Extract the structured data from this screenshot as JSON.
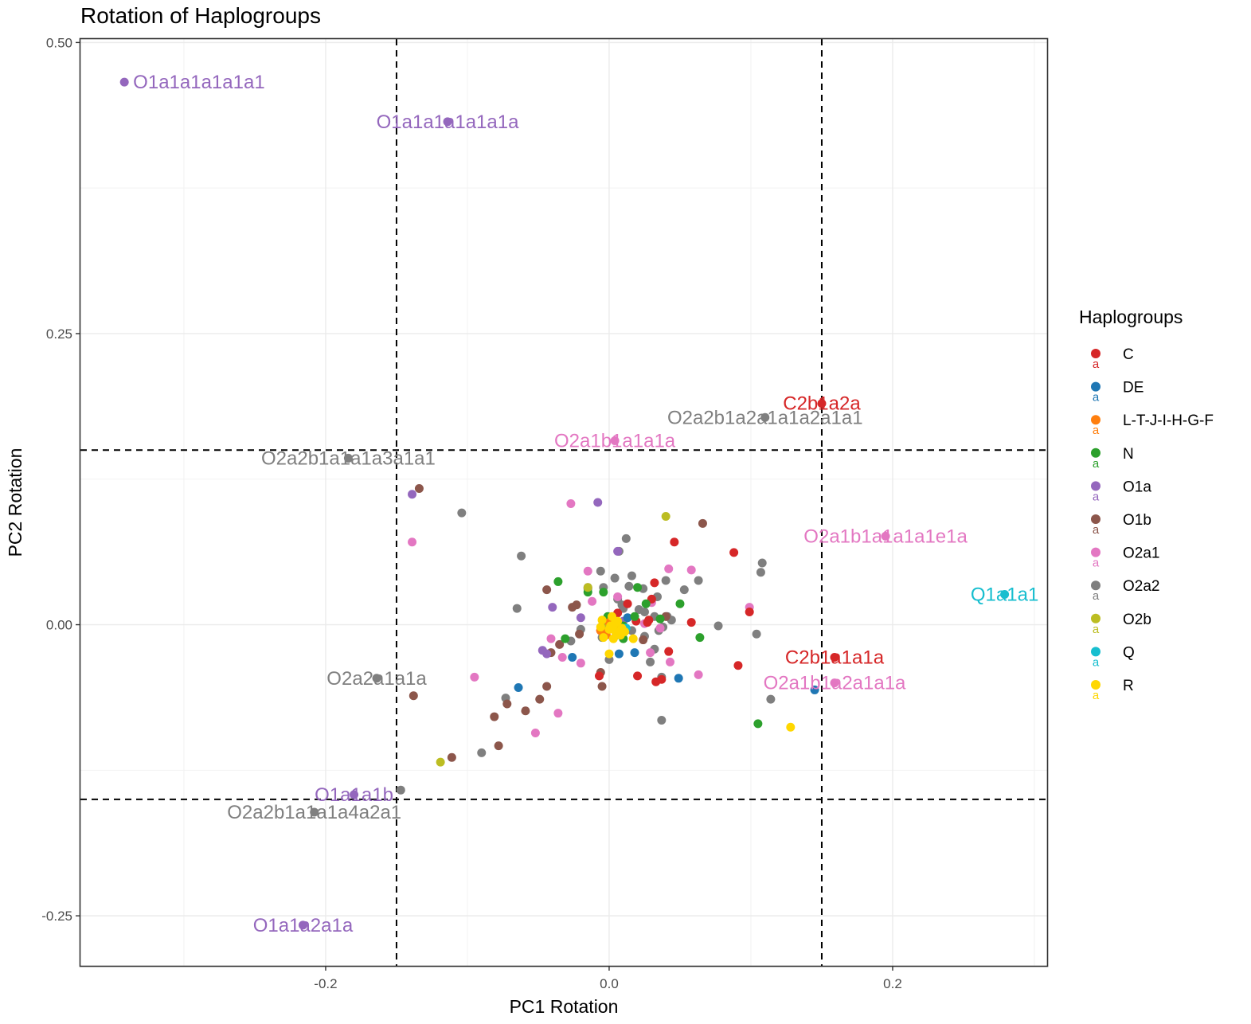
{
  "chart_data": {
    "type": "scatter",
    "title": "Rotation of Haplogroups",
    "xlabel": "PC1 Rotation",
    "ylabel": "PC2 Rotation",
    "xlim": [
      -0.373,
      0.309
    ],
    "ylim": [
      -0.293,
      0.503
    ],
    "x_ticks": [
      -0.2,
      0.0,
      0.2
    ],
    "x_tick_labels": [
      "-0.2",
      "0.0",
      "0.2"
    ],
    "y_ticks": [
      -0.25,
      0.0,
      0.25,
      0.5
    ],
    "y_tick_labels": [
      "-0.25",
      "0.00",
      "0.25",
      "0.50"
    ],
    "grid": true,
    "threshold_lines": {
      "x": [
        -0.15,
        0.15
      ],
      "y": [
        -0.15,
        0.15
      ]
    },
    "legend": {
      "title": "Haplogroups",
      "position": "right",
      "key_glyph": "a",
      "entries": [
        {
          "name": "C",
          "color": "#D62728"
        },
        {
          "name": "DE",
          "color": "#1F77B4"
        },
        {
          "name": "L-T-J-I-H-G-F",
          "color": "#FF7F0E"
        },
        {
          "name": "N",
          "color": "#2CA02C"
        },
        {
          "name": "O1a",
          "color": "#9467BD"
        },
        {
          "name": "O1b",
          "color": "#8C564B"
        },
        {
          "name": "O2a1",
          "color": "#E377C2"
        },
        {
          "name": "O2a2",
          "color": "#7F7F7F"
        },
        {
          "name": "O2b",
          "color": "#BCBD22"
        },
        {
          "name": "Q",
          "color": "#17BECF"
        },
        {
          "name": "R",
          "color": "#FFD700"
        }
      ]
    },
    "labels": [
      {
        "text": "O1a1a1a1a1a1",
        "group": "O1a",
        "x": -0.342,
        "y": 0.466,
        "anchor": "start"
      },
      {
        "text": "O1a1a1a1a1a1a",
        "group": "O1a",
        "x": -0.114,
        "y": 0.432,
        "anchor": "middle"
      },
      {
        "text": "C2b1a2a",
        "group": "C",
        "x": 0.15,
        "y": 0.19,
        "anchor": "middle"
      },
      {
        "text": "O2a2b1a2a1a1a2a1a1",
        "group": "O2a2",
        "x": 0.11,
        "y": 0.178,
        "anchor": "middle"
      },
      {
        "text": "O2a2b1a1a1a3a1a1",
        "group": "O2a2",
        "x": -0.184,
        "y": 0.143,
        "anchor": "middle"
      },
      {
        "text": "O2a1b1a1a1a",
        "group": "O2a1",
        "x": 0.004,
        "y": 0.158,
        "anchor": "middle"
      },
      {
        "text": "O2a1b1a1a1a1e1a",
        "group": "O2a1",
        "x": 0.195,
        "y": 0.076,
        "anchor": "middle"
      },
      {
        "text": "Q1a1a1",
        "group": "Q",
        "x": 0.279,
        "y": 0.026,
        "anchor": "middle"
      },
      {
        "text": "C2b1a1a1a",
        "group": "C",
        "x": 0.159,
        "y": -0.028,
        "anchor": "middle"
      },
      {
        "text": "O2a2a1a1a",
        "group": "O2a2",
        "x": -0.164,
        "y": -0.046,
        "anchor": "middle"
      },
      {
        "text": "O2a1b1a2a1a1a",
        "group": "O2a1",
        "x": 0.159,
        "y": -0.05,
        "anchor": "middle"
      },
      {
        "text": "O1a1a1b",
        "group": "O1a",
        "x": -0.18,
        "y": -0.146,
        "anchor": "middle"
      },
      {
        "text": "O2a2b1a1a1a4a2a1",
        "group": "O2a2",
        "x": -0.208,
        "y": -0.161,
        "anchor": "middle"
      },
      {
        "text": "O1a1a2a1a",
        "group": "O1a",
        "x": -0.216,
        "y": -0.258,
        "anchor": "middle"
      }
    ],
    "series": [
      {
        "name": "C",
        "x": [
          0.15,
          0.159,
          0.099,
          0.088,
          0.046,
          0.032,
          0.02,
          0.033,
          0.042,
          0.037,
          0.058,
          0.013,
          0.019,
          0.027,
          0.03,
          0.006,
          -0.007,
          -0.006,
          0.091,
          0.028
        ],
        "y": [
          0.19,
          -0.028,
          0.011,
          0.062,
          0.071,
          0.036,
          -0.044,
          -0.049,
          -0.023,
          -0.047,
          0.002,
          0.018,
          0.003,
          0.002,
          0.022,
          0.01,
          -0.044,
          -0.005,
          -0.035,
          0.004
        ]
      },
      {
        "name": "DE",
        "x": [
          0.145,
          0.049,
          0.018,
          0.007,
          -0.064,
          -0.026,
          0.007,
          0.013
        ],
        "y": [
          -0.056,
          -0.046,
          -0.024,
          -0.025,
          -0.054,
          -0.028,
          -0.004,
          0.006
        ]
      },
      {
        "name": "L-T-J-I-H-G-F",
        "x": [
          -0.006,
          0.0,
          -0.002,
          0.004
        ],
        "y": [
          -0.005,
          0.002,
          -0.009,
          -0.004
        ]
      },
      {
        "name": "N",
        "x": [
          0.105,
          0.064,
          0.05,
          0.036,
          0.02,
          -0.036,
          -0.031,
          -0.015,
          -0.004,
          0.018,
          0.01,
          -0.001,
          0.026,
          0.01
        ],
        "y": [
          -0.085,
          -0.011,
          0.018,
          0.005,
          0.032,
          0.037,
          -0.012,
          0.028,
          0.028,
          0.007,
          -0.001,
          0.007,
          0.018,
          -0.012
        ]
      },
      {
        "name": "O1a",
        "x": [
          -0.342,
          -0.114,
          -0.18,
          -0.216,
          -0.139,
          -0.008,
          0.006,
          -0.04,
          -0.02,
          -0.044,
          -0.047,
          -0.015,
          0.01
        ],
        "y": [
          0.466,
          0.432,
          -0.146,
          -0.258,
          0.112,
          0.105,
          0.063,
          0.015,
          0.006,
          -0.025,
          -0.022,
          0.032,
          0.003
        ]
      },
      {
        "name": "O1b",
        "x": [
          -0.134,
          -0.138,
          -0.111,
          -0.072,
          -0.081,
          -0.078,
          -0.059,
          -0.049,
          -0.044,
          -0.044,
          -0.035,
          -0.021,
          -0.026,
          -0.006,
          -0.005,
          0.066,
          -0.041,
          -0.023,
          0.024,
          0.04
        ],
        "y": [
          0.117,
          -0.061,
          -0.114,
          -0.068,
          -0.079,
          -0.104,
          -0.074,
          -0.064,
          -0.053,
          0.03,
          -0.017,
          -0.008,
          0.015,
          -0.041,
          -0.053,
          0.087,
          -0.024,
          0.017,
          -0.013,
          0.007
        ]
      },
      {
        "name": "O2a1",
        "x": [
          0.004,
          0.195,
          0.159,
          -0.139,
          -0.027,
          -0.052,
          -0.036,
          -0.095,
          -0.041,
          0.099,
          0.058,
          0.042,
          0.063,
          0.043,
          0.029,
          -0.015,
          -0.02,
          -0.033,
          -0.006,
          -0.012,
          0.006,
          0.025,
          0.03,
          0.036
        ],
        "y": [
          0.158,
          0.076,
          -0.05,
          0.071,
          0.104,
          -0.093,
          -0.076,
          -0.045,
          -0.012,
          0.015,
          0.047,
          0.048,
          -0.043,
          -0.032,
          -0.024,
          0.046,
          -0.033,
          -0.028,
          -0.005,
          0.02,
          0.024,
          0.001,
          0.019,
          -0.003
        ]
      },
      {
        "name": "O2a2",
        "x": [
          0.11,
          -0.184,
          -0.164,
          -0.208,
          -0.104,
          -0.062,
          -0.073,
          -0.147,
          -0.09,
          -0.065,
          0.104,
          0.107,
          0.108,
          0.077,
          0.063,
          0.053,
          0.04,
          0.037,
          0.034,
          0.016,
          0.012,
          0.007,
          0.004,
          -0.004,
          -0.006,
          -0.015,
          -0.02,
          -0.027,
          0.006,
          0.014,
          0.024,
          0.032,
          0.041,
          0.021,
          0.044,
          0.114,
          0.037,
          0.029,
          0.0,
          0.01,
          0.016,
          0.009,
          0.025,
          0.035,
          0.025,
          0.002,
          -0.004,
          0.005,
          0.032,
          -0.005,
          0.038
        ],
        "y": [
          0.178,
          0.143,
          -0.046,
          -0.161,
          0.096,
          0.059,
          -0.063,
          -0.142,
          -0.11,
          0.014,
          -0.008,
          0.045,
          0.053,
          -0.001,
          0.038,
          0.03,
          0.038,
          -0.082,
          0.024,
          0.042,
          0.074,
          0.063,
          0.04,
          0.032,
          0.046,
          0.031,
          -0.004,
          -0.014,
          0.022,
          0.033,
          0.031,
          0.007,
          0.007,
          0.013,
          0.004,
          -0.064,
          -0.045,
          -0.032,
          -0.03,
          0.014,
          -0.005,
          0.017,
          0.011,
          -0.005,
          -0.01,
          0.0,
          0.003,
          -0.009,
          -0.021,
          -0.011,
          -0.002
        ]
      },
      {
        "name": "O2b",
        "x": [
          0.04,
          -0.119,
          -0.015,
          -0.004,
          -0.004
        ],
        "y": [
          0.093,
          -0.118,
          0.032,
          -0.003,
          -0.009
        ]
      },
      {
        "name": "Q",
        "x": [
          0.279,
          0.012
        ],
        "y": [
          0.026,
          -0.003
        ]
      },
      {
        "name": "R",
        "x": [
          0.128,
          0.017,
          0.0,
          0.004,
          0.009,
          0.006,
          -0.006,
          -0.004,
          0.002,
          0.011,
          0.008,
          0.0,
          0.004,
          -0.005,
          0.006,
          0.001,
          0.003
        ],
        "y": [
          -0.088,
          -0.012,
          -0.025,
          -0.005,
          -0.003,
          0.003,
          -0.002,
          -0.011,
          0.007,
          -0.006,
          -0.009,
          -0.004,
          0.001,
          0.004,
          -0.007,
          -0.001,
          -0.012
        ]
      }
    ]
  }
}
